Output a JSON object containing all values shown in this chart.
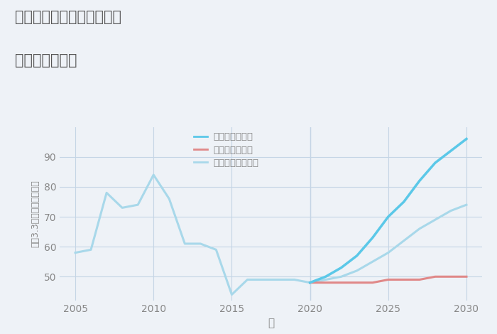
{
  "title_line1": "大阪府豊能郡能勢町稲地の",
  "title_line2": "土地の価格推移",
  "xlabel": "年",
  "ylabel": "坪（3.3㎡）単価（万円）",
  "background_color": "#eef2f7",
  "plot_background": "#eef2f7",
  "grid_color": "#c5d5e5",
  "title_color": "#555555",
  "axis_color": "#888888",
  "normal_x": [
    2005,
    2006,
    2007,
    2008,
    2009,
    2010,
    2011,
    2012,
    2013,
    2014,
    2015,
    2016,
    2017,
    2018,
    2019,
    2020
  ],
  "normal_y": [
    58,
    59,
    78,
    73,
    74,
    84,
    76,
    61,
    61,
    59,
    44,
    49,
    49,
    49,
    49,
    48
  ],
  "good_x": [
    2020,
    2021,
    2022,
    2023,
    2024,
    2025,
    2026,
    2027,
    2028,
    2029,
    2030
  ],
  "good_y": [
    48,
    50,
    53,
    57,
    63,
    70,
    75,
    82,
    88,
    92,
    96
  ],
  "bad_x": [
    2020,
    2021,
    2022,
    2023,
    2024,
    2025,
    2026,
    2027,
    2028,
    2029,
    2030
  ],
  "bad_y": [
    48,
    48,
    48,
    48,
    48,
    49,
    49,
    49,
    50,
    50,
    50
  ],
  "normal_future_x": [
    2020,
    2021,
    2022,
    2023,
    2024,
    2025,
    2026,
    2027,
    2028,
    2029,
    2030
  ],
  "normal_future_y": [
    48,
    49,
    50,
    52,
    55,
    58,
    62,
    66,
    69,
    72,
    74
  ],
  "good_color": "#5bc8e8",
  "bad_color": "#e08888",
  "normal_color": "#a8d8ea",
  "normal_future_color": "#a8d8ea",
  "good_label": "グッドシナリオ",
  "bad_label": "バッドシナリオ",
  "normal_label": "ノーマルシナリオ",
  "ylim": [
    42,
    100
  ],
  "xlim": [
    2004,
    2031
  ],
  "yticks": [
    50,
    60,
    70,
    80,
    90
  ],
  "xticks": [
    2005,
    2010,
    2015,
    2020,
    2025,
    2030
  ]
}
